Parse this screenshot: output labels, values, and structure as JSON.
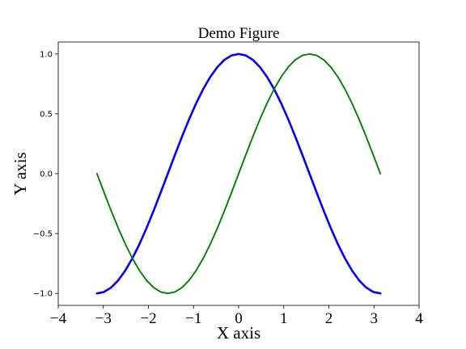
{
  "chart_data": {
    "type": "line",
    "title": "Demo Figure",
    "xlabel": "X axis",
    "ylabel": "Y axis",
    "xlim": [
      -4,
      4
    ],
    "ylim": [
      -1.1,
      1.1
    ],
    "grid": false,
    "xticks": [
      -4,
      -3,
      -2,
      -1,
      0,
      1,
      2,
      3,
      4
    ],
    "xtick_labels": [
      "−4",
      "−3",
      "−2",
      "−1",
      "0",
      "1",
      "2",
      "3",
      "4"
    ],
    "yticks": [
      -1.0,
      -0.5,
      0.0,
      0.5,
      1.0
    ],
    "ytick_labels": [
      "−1.0",
      "−0.5",
      "0.0",
      "0.5",
      "1.0"
    ],
    "series": [
      {
        "color": "#0000ff",
        "x": [
          -3.1416,
          -2.9845,
          -2.8274,
          -2.6704,
          -2.5133,
          -2.3562,
          -2.1991,
          -2.042,
          -1.885,
          -1.7279,
          -1.5708,
          -1.4137,
          -1.2566,
          -1.0996,
          -0.9425,
          -0.7854,
          -0.6283,
          -0.4712,
          -0.3142,
          -0.1571,
          0.0,
          0.1571,
          0.3142,
          0.4712,
          0.6283,
          0.7854,
          0.9425,
          1.0996,
          1.2566,
          1.4137,
          1.5708,
          1.7279,
          1.885,
          2.042,
          2.1991,
          2.3562,
          2.5133,
          2.6704,
          2.8274,
          2.9845,
          3.1416
        ],
        "y": [
          -1.0,
          -0.988,
          -0.951,
          -0.891,
          -0.809,
          -0.707,
          -0.588,
          -0.454,
          -0.309,
          -0.156,
          0.0,
          0.156,
          0.309,
          0.454,
          0.588,
          0.707,
          0.809,
          0.891,
          0.951,
          0.988,
          1.0,
          0.988,
          0.951,
          0.891,
          0.809,
          0.707,
          0.588,
          0.454,
          0.309,
          0.156,
          0.0,
          -0.156,
          -0.309,
          -0.454,
          -0.588,
          -0.707,
          -0.809,
          -0.891,
          -0.951,
          -0.988,
          -1.0
        ]
      },
      {
        "color": "#008000",
        "x": [
          -3.1416,
          -2.9845,
          -2.8274,
          -2.6704,
          -2.5133,
          -2.3562,
          -2.1991,
          -2.042,
          -1.885,
          -1.7279,
          -1.5708,
          -1.4137,
          -1.2566,
          -1.0996,
          -0.9425,
          -0.7854,
          -0.6283,
          -0.4712,
          -0.3142,
          -0.1571,
          0.0,
          0.1571,
          0.3142,
          0.4712,
          0.6283,
          0.7854,
          0.9425,
          1.0996,
          1.2566,
          1.4137,
          1.5708,
          1.7279,
          1.885,
          2.042,
          2.1991,
          2.3562,
          2.5133,
          2.6704,
          2.8274,
          2.9845,
          3.1416
        ],
        "y": [
          0.0,
          -0.156,
          -0.309,
          -0.454,
          -0.588,
          -0.707,
          -0.809,
          -0.891,
          -0.951,
          -0.988,
          -1.0,
          -0.988,
          -0.951,
          -0.891,
          -0.809,
          -0.707,
          -0.588,
          -0.454,
          -0.309,
          -0.156,
          0.0,
          0.156,
          0.309,
          0.454,
          0.588,
          0.707,
          0.809,
          0.891,
          0.951,
          0.988,
          1.0,
          0.988,
          0.951,
          0.891,
          0.809,
          0.707,
          0.588,
          0.454,
          0.309,
          0.156,
          0.0
        ]
      }
    ]
  }
}
